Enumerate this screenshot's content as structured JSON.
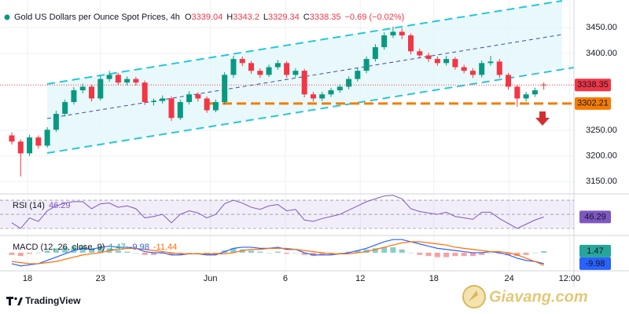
{
  "chart_data": {
    "type": "candlestick",
    "title": "Gold US Dollars per Ounce Spot Prices, 4h",
    "ohlc_prefixes": [
      "O",
      "H",
      "L",
      "C"
    ],
    "change": "−0.69 (−0.02%)",
    "xlim": [
      -1.33,
      63.4
    ],
    "xticks": [
      {
        "value": 1.77,
        "label": "18"
      },
      {
        "value": 10.0,
        "label": "23"
      },
      {
        "value": 22.4,
        "label": "Jun"
      },
      {
        "value": 30.85,
        "label": "6"
      },
      {
        "value": 39.3,
        "label": "12"
      },
      {
        "value": 47.6,
        "label": "18"
      },
      {
        "value": 56.1,
        "label": "24"
      },
      {
        "value": 62.9,
        "label": "12:00"
      }
    ],
    "ylim": [
      3129,
      3504
    ],
    "yticks": [
      {
        "value": 3150,
        "label": "3150.00"
      },
      {
        "value": 3200,
        "label": "3200.00"
      },
      {
        "value": 3250,
        "label": "3250.00"
      },
      {
        "value": 3400,
        "label": "3400.00"
      },
      {
        "value": 3450,
        "label": "3450.00"
      }
    ],
    "grid": true,
    "series": [
      {
        "up_color": "#089981",
        "down_color": "#f23645",
        "open": [
          3240,
          3228,
          3205,
          3236,
          3220,
          3251,
          3282,
          3305,
          3328,
          3335,
          3312,
          3350,
          3358,
          3343,
          3350,
          3343,
          3305,
          3307,
          3312,
          3274,
          3305,
          3320,
          3312,
          3289,
          3305,
          3358,
          3389,
          3381,
          3366,
          3358,
          3373,
          3381,
          3358,
          3366,
          3320,
          3312,
          3320,
          3328,
          3335,
          3350,
          3366,
          3389,
          3412,
          3435,
          3442,
          3435,
          3404,
          3396,
          3389,
          3381,
          3389,
          3373,
          3366,
          3358,
          3381,
          3384,
          3358,
          3335,
          3312,
          3320,
          3339.04
        ],
        "high": [
          3246,
          3232,
          3241,
          3240,
          3256,
          3288,
          3310,
          3334,
          3341,
          3339,
          3356,
          3366,
          3362,
          3355,
          3354,
          3347,
          3312,
          3318,
          3316,
          3310,
          3326,
          3324,
          3316,
          3310,
          3363,
          3395,
          3394,
          3385,
          3371,
          3378,
          3387,
          3385,
          3371,
          3370,
          3325,
          3325,
          3333,
          3340,
          3355,
          3371,
          3394,
          3418,
          3441,
          3452,
          3449,
          3439,
          3409,
          3401,
          3394,
          3395,
          3393,
          3378,
          3371,
          3386,
          3395,
          3389,
          3362,
          3339,
          3325,
          3333,
          3343.2
        ],
        "low": [
          3222,
          3160,
          3200,
          3214,
          3216,
          3247,
          3277,
          3300,
          3322,
          3306,
          3308,
          3345,
          3338,
          3338,
          3337,
          3299,
          3298,
          3302,
          3268,
          3270,
          3300,
          3306,
          3284,
          3285,
          3300,
          3352,
          3375,
          3360,
          3352,
          3354,
          3368,
          3352,
          3353,
          3314,
          3306,
          3307,
          3315,
          3323,
          3330,
          3345,
          3361,
          3384,
          3407,
          3430,
          3428,
          3398,
          3390,
          3383,
          3376,
          3376,
          3368,
          3361,
          3352,
          3353,
          3376,
          3352,
          3329,
          3296,
          3306,
          3315,
          3329.34
        ],
        "close": [
          3228,
          3205,
          3236,
          3220,
          3251,
          3282,
          3305,
          3328,
          3335,
          3312,
          3350,
          3358,
          3343,
          3350,
          3343,
          3305,
          3307,
          3312,
          3274,
          3305,
          3320,
          3312,
          3289,
          3305,
          3358,
          3389,
          3381,
          3366,
          3358,
          3373,
          3381,
          3358,
          3366,
          3320,
          3312,
          3320,
          3328,
          3335,
          3350,
          3366,
          3389,
          3412,
          3435,
          3442,
          3435,
          3404,
          3396,
          3389,
          3381,
          3389,
          3373,
          3366,
          3358,
          3381,
          3384,
          3358,
          3335,
          3312,
          3320,
          3328,
          3338.35
        ]
      }
    ],
    "support": {
      "value": 3302.21,
      "color": "#f57c00"
    },
    "rsi": {
      "label": "RSI (14)",
      "color": "#7e57c2",
      "ylim": [
        20,
        79
      ],
      "bands": [
        70,
        50,
        30
      ],
      "values": [
        38,
        30,
        45,
        40,
        55,
        62,
        66,
        68,
        68,
        58,
        65,
        66,
        60,
        62,
        58,
        45,
        47,
        50,
        38,
        50,
        55,
        52,
        45,
        50,
        65,
        70,
        66,
        60,
        57,
        62,
        64,
        55,
        57,
        42,
        40,
        44,
        47,
        50,
        56,
        62,
        68,
        72,
        76,
        77,
        72,
        58,
        54,
        52,
        50,
        53,
        47,
        45,
        43,
        53,
        53,
        44,
        37,
        30,
        36,
        42,
        46.29
      ]
    },
    "macd": {
      "label": "MACD (12, 26, close, 9)",
      "ylim": [
        -16.5,
        15.7
      ],
      "histogram": {
        "up_color": "#26a69a",
        "down_color": "#ef5350",
        "values": [
          -2,
          -3,
          -1,
          0,
          2,
          4,
          5,
          6,
          6,
          4,
          5,
          4,
          2,
          1,
          0,
          -2,
          -2,
          -1,
          -2,
          -1,
          0,
          0,
          -1,
          -1,
          2,
          4,
          3,
          2,
          1,
          0,
          1,
          -1,
          0,
          -2,
          -3,
          -2,
          -1,
          0,
          1,
          2,
          3,
          4,
          5,
          5,
          3,
          0,
          -2,
          -3,
          -4,
          -4,
          -3,
          -3,
          -3,
          -2,
          0,
          -1,
          -2,
          -3,
          -2,
          0,
          1.47
        ]
      },
      "macd": {
        "color": "#2962ff",
        "values": [
          -10,
          -12,
          -11,
          -10,
          -7,
          -4,
          -1,
          2,
          4,
          3,
          5,
          6,
          5,
          5,
          4,
          1,
          0,
          0,
          -2,
          -2,
          -1,
          -1,
          -2,
          -2,
          1,
          4,
          5,
          5,
          4,
          4,
          5,
          3,
          3,
          0,
          -2,
          -2,
          -2,
          -1,
          0,
          2,
          4,
          7,
          10,
          12,
          12,
          10,
          8,
          6,
          4,
          3,
          2,
          1,
          0,
          0,
          1,
          0,
          -2,
          -5,
          -7,
          -8,
          -9.98
        ]
      },
      "signal": {
        "color": "#ff6d00",
        "values": [
          -8,
          -9,
          -10,
          -10,
          -9,
          -8,
          -6,
          -4,
          -2,
          -1,
          0,
          2,
          3,
          4,
          4,
          3,
          2,
          1,
          0,
          -1,
          -1,
          -1,
          -1,
          -1,
          -1,
          0,
          2,
          3,
          3,
          4,
          4,
          4,
          3,
          2,
          1,
          0,
          -1,
          -1,
          -1,
          0,
          1,
          3,
          5,
          7,
          9,
          10,
          10,
          9,
          8,
          7,
          5,
          4,
          3,
          2,
          1,
          1,
          0,
          -2,
          -5,
          -8,
          -11.44
        ]
      }
    }
  },
  "footer": {
    "brand": "TradingView",
    "watermark": "Giavang.com"
  }
}
